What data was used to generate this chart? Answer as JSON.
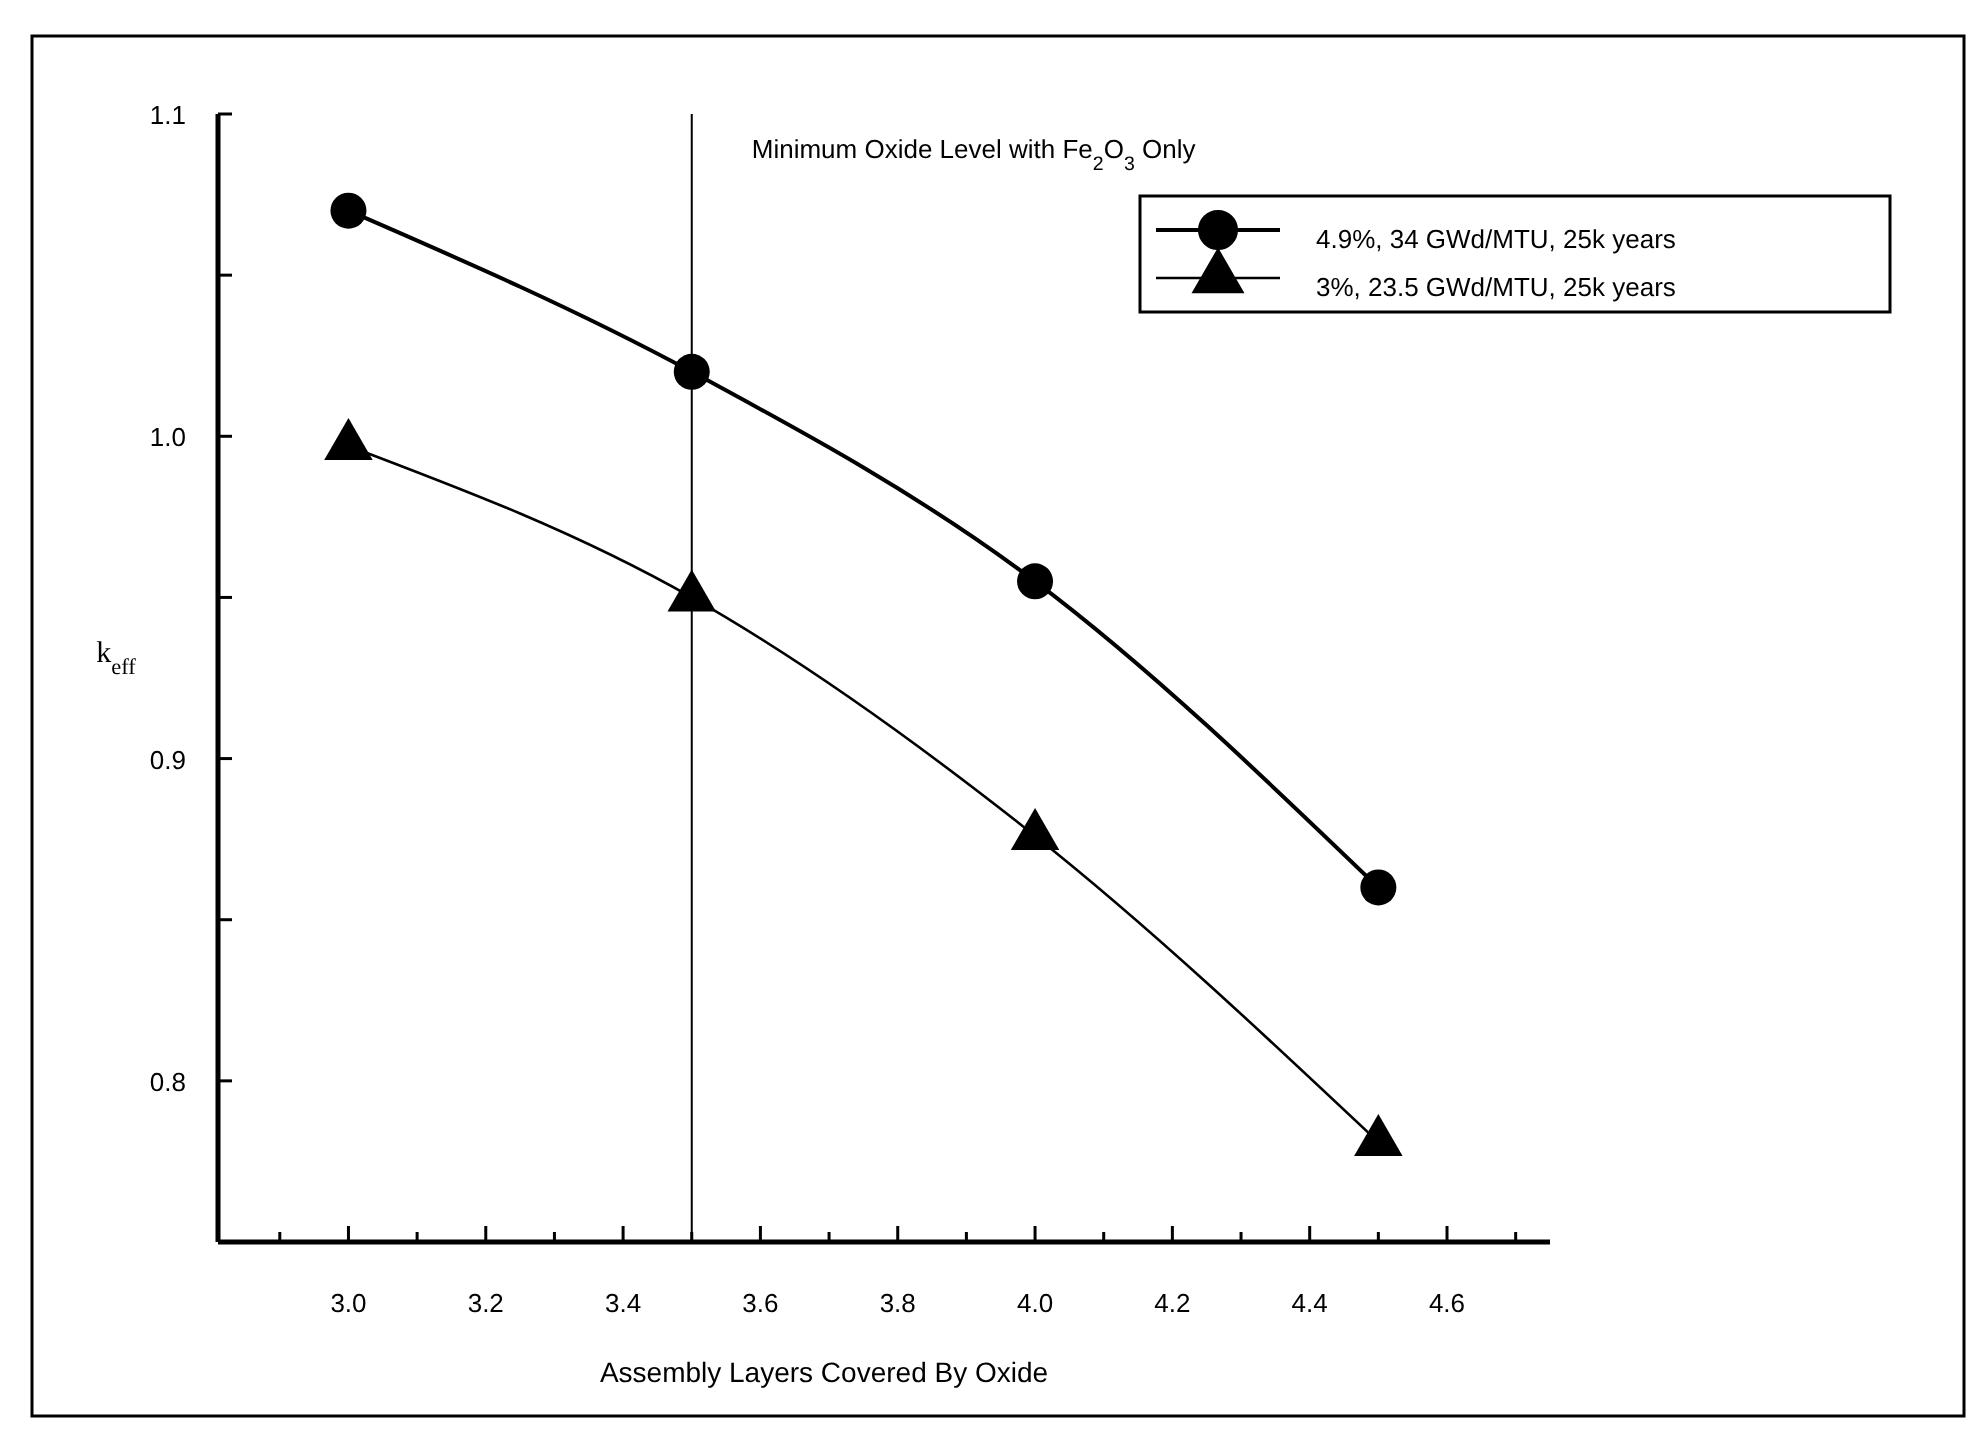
{
  "chart_data": {
    "type": "line",
    "xlabel": "Assembly Layers Covered By Oxide",
    "ylabel": "k$_{eff}$",
    "x": [
      3.0,
      3.5,
      4.0,
      4.5
    ],
    "series": [
      {
        "name": "4.9%, 34 GWd/MTU, 25k years",
        "color": "#000000",
        "marker": "circle",
        "values": [
          1.07,
          1.02,
          0.955,
          0.86
        ]
      },
      {
        "name": "3%, 23.5 GWd/MTU, 25k years",
        "color": "#000000",
        "marker": "triangle",
        "values": [
          0.997,
          0.95,
          0.876,
          0.781
        ]
      }
    ],
    "xlim": [
      2.81,
      4.75
    ],
    "xticks": [
      {
        "value": 2.9,
        "label": null
      },
      "3.0",
      {
        "value": 3.1,
        "label": null
      },
      {
        "value": 3.2,
        "label": "3.2"
      },
      {
        "value": 3.3,
        "label": null
      },
      {
        "value": 3.4,
        "label": "3.4"
      },
      {
        "value": 3.5,
        "label": null
      },
      {
        "value": 3.6,
        "label": "3.6"
      },
      {
        "value": 3.7,
        "label": null
      },
      {
        "value": 3.8,
        "label": "3.8"
      },
      {
        "value": 3.9,
        "label": null
      },
      {
        "value": 4.0,
        "label": "4.0"
      },
      {
        "value": 4.1,
        "label": null
      },
      {
        "value": 4.2,
        "label": "4.2"
      },
      {
        "value": 4.3,
        "label": null
      },
      {
        "value": 4.4,
        "label": "4.4"
      },
      {
        "value": 4.5,
        "label": null
      },
      {
        "value": 4.6,
        "label": "4.6"
      },
      {
        "value": 4.7,
        "label": null
      }
    ],
    "ylim": [
      0.75,
      1.1
    ],
    "yticks": [
      {
        "value": 0.8,
        "label": "0.8"
      },
      {
        "value": 0.85,
        "label": null
      },
      {
        "value": 0.9,
        "label": "0.9"
      },
      {
        "value": 0.95,
        "label": null
      },
      {
        "value": 1.0,
        "label": "1.0"
      },
      {
        "value": 1.05,
        "label": null
      },
      {
        "value": 1.1,
        "label": "1.1"
      }
    ],
    "ref_lines": [
      {
        "axis": "x",
        "value": 3.5,
        "label": "Minimum Oxide Level with Fe$_{2}$O$_{3}$ Only",
        "color": "#000000"
      }
    ],
    "grid": false,
    "legend": "top right",
    "line_style": "solid"
  }
}
